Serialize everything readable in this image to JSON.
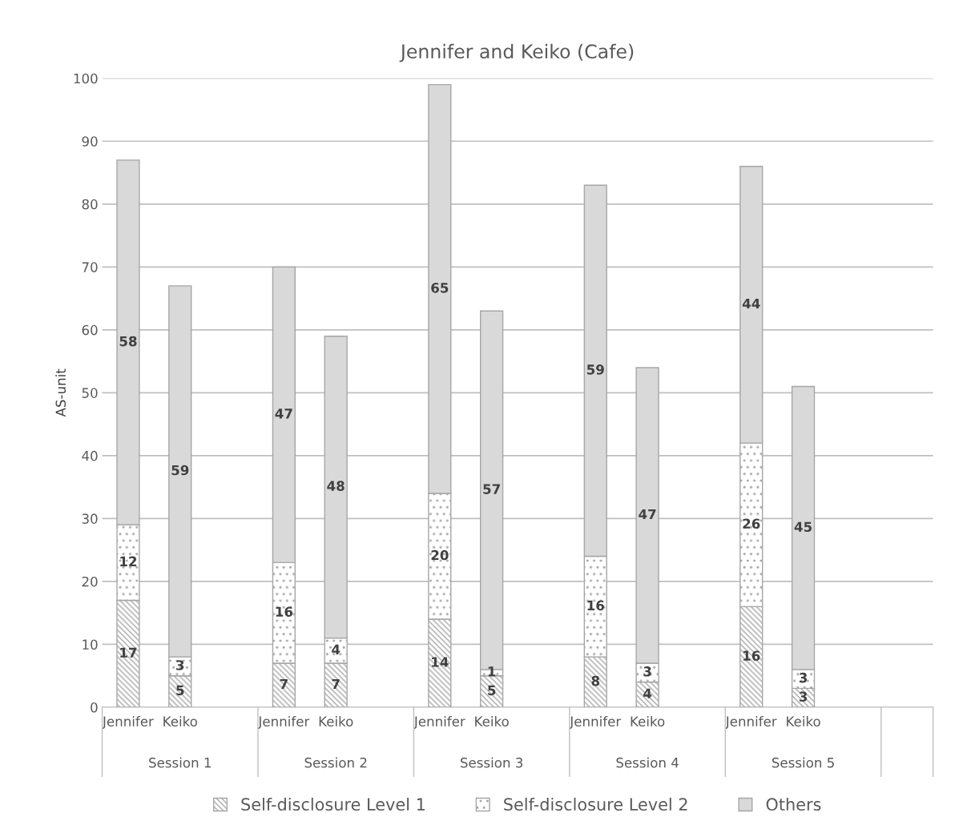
{
  "chart_data": {
    "type": "bar",
    "title": "Jennifer and Keiko (Cafe)",
    "ylabel": "AS-unit",
    "categories": [
      "Jennifer",
      "Keiko",
      null,
      "Jennifer",
      "Keiko",
      null,
      "Jennifer",
      "Keiko",
      null,
      "Jennifer",
      "Keiko",
      null,
      "Jennifer",
      "Keiko",
      null
    ],
    "annotations": [
      "Session 1",
      "Session 2",
      "Session 3",
      "Session 4",
      "Session 5"
    ],
    "stacked": true,
    "series": [
      {
        "name": "Self-disclosure Level 1",
        "color": "#a6a6a6",
        "values": [
          17,
          5,
          null,
          7,
          7,
          null,
          14,
          5,
          null,
          8,
          4,
          null,
          16,
          3,
          null
        ]
      },
      {
        "name": "Self-disclosure Level 2",
        "color": "#a6a6a6",
        "values": [
          12,
          3,
          null,
          16,
          4,
          null,
          20,
          1,
          null,
          16,
          3,
          null,
          26,
          3,
          null
        ]
      },
      {
        "name": "Others",
        "color": "#d9d9d9",
        "values": [
          58,
          59,
          null,
          47,
          48,
          null,
          65,
          57,
          null,
          59,
          47,
          null,
          44,
          45,
          null
        ]
      }
    ],
    "ylim": [
      0,
      100
    ],
    "yticks": [
      0,
      10,
      20,
      30,
      40,
      50,
      60,
      70,
      80,
      90,
      100
    ],
    "grid": "y",
    "legend": "bottom",
    "data_labels": true
  }
}
